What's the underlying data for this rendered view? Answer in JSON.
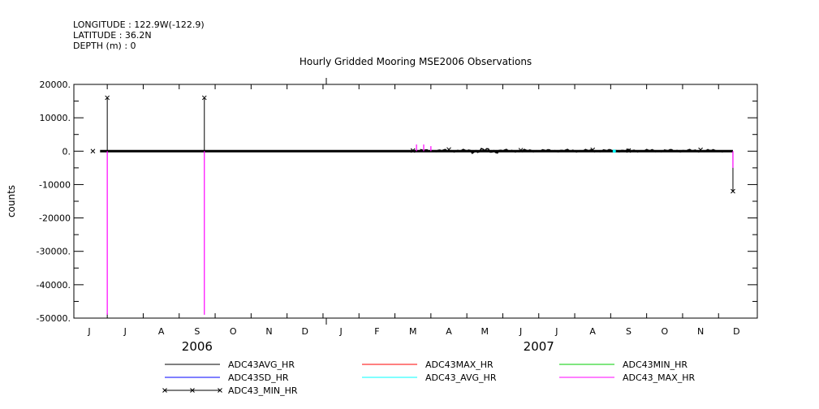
{
  "header": {
    "longitude": "LONGITUDE : 122.9W(-122.9)",
    "latitude": "LATITUDE : 36.2N",
    "depth": "DEPTH (m) : 0"
  },
  "chart_data": {
    "type": "line",
    "title": "Hourly Gridded Mooring MSE2006 Observations",
    "ylabel": "counts",
    "xlabel": "",
    "ylim": [
      -50000,
      20000
    ],
    "yticks": [
      20000,
      10000,
      0,
      -10000,
      -20000,
      -30000,
      -40000,
      -50000
    ],
    "ytick_labels": [
      "20000.",
      "10000.",
      "0.",
      "-10000",
      "-20000",
      "-30000.",
      "-40000.",
      "-50000."
    ],
    "month_labels": [
      "J",
      "J",
      "A",
      "S",
      "O",
      "N",
      "D",
      "J",
      "F",
      "M",
      "A",
      "M",
      "J",
      "J",
      "A",
      "S",
      "O",
      "N",
      "D"
    ],
    "year_labels": [
      {
        "label": "2006",
        "month_index": 3
      },
      {
        "label": "2007",
        "month_index": 12.5
      }
    ],
    "grid": false,
    "legend_placement": "bottom",
    "colors": {
      "ADC43AVG_HR": "#000000",
      "ADC43MAX_HR": "#ff0000",
      "ADC43MIN_HR": "#00cc00",
      "ADC43SD_HR": "#0000ff",
      "ADC43_AVG_HR": "#00ffff",
      "ADC43_MAX_HR": "#ff00ff",
      "ADC43_MIN_HR": "#000000"
    },
    "legend": [
      {
        "name": "ADC43AVG_HR",
        "color": "#000000",
        "marker": "none"
      },
      {
        "name": "ADC43MAX_HR",
        "color": "#ff0000",
        "marker": "none"
      },
      {
        "name": "ADC43MIN_HR",
        "color": "#00cc00",
        "marker": "none"
      },
      {
        "name": "ADC43SD_HR",
        "color": "#0000ff",
        "marker": "none"
      },
      {
        "name": "ADC43_AVG_HR",
        "color": "#00ffff",
        "marker": "none"
      },
      {
        "name": "ADC43_MAX_HR",
        "color": "#ff00ff",
        "marker": "none"
      },
      {
        "name": "ADC43_MIN_HR",
        "color": "#000000",
        "marker": "x"
      }
    ],
    "series": [
      {
        "name": "ADC43_MIN_HR",
        "x": [
          0.1,
          0.5,
          3.2,
          9.0,
          10.0,
          12.0,
          14.0,
          15.0,
          17.0,
          17.9
        ],
        "values": [
          0,
          16000,
          16000,
          200,
          500,
          300,
          400,
          200,
          400,
          -12000
        ]
      },
      {
        "name": "ADC43_MAX_HR",
        "x": [
          0.5,
          3.2,
          9.1,
          9.3,
          9.5,
          17.9
        ],
        "values": [
          -49000,
          -49000,
          2000,
          2000,
          1500,
          -5000
        ]
      },
      {
        "name": "ADC43_AVG_HR",
        "x": [
          14.6
        ],
        "values": [
          0
        ]
      }
    ]
  }
}
